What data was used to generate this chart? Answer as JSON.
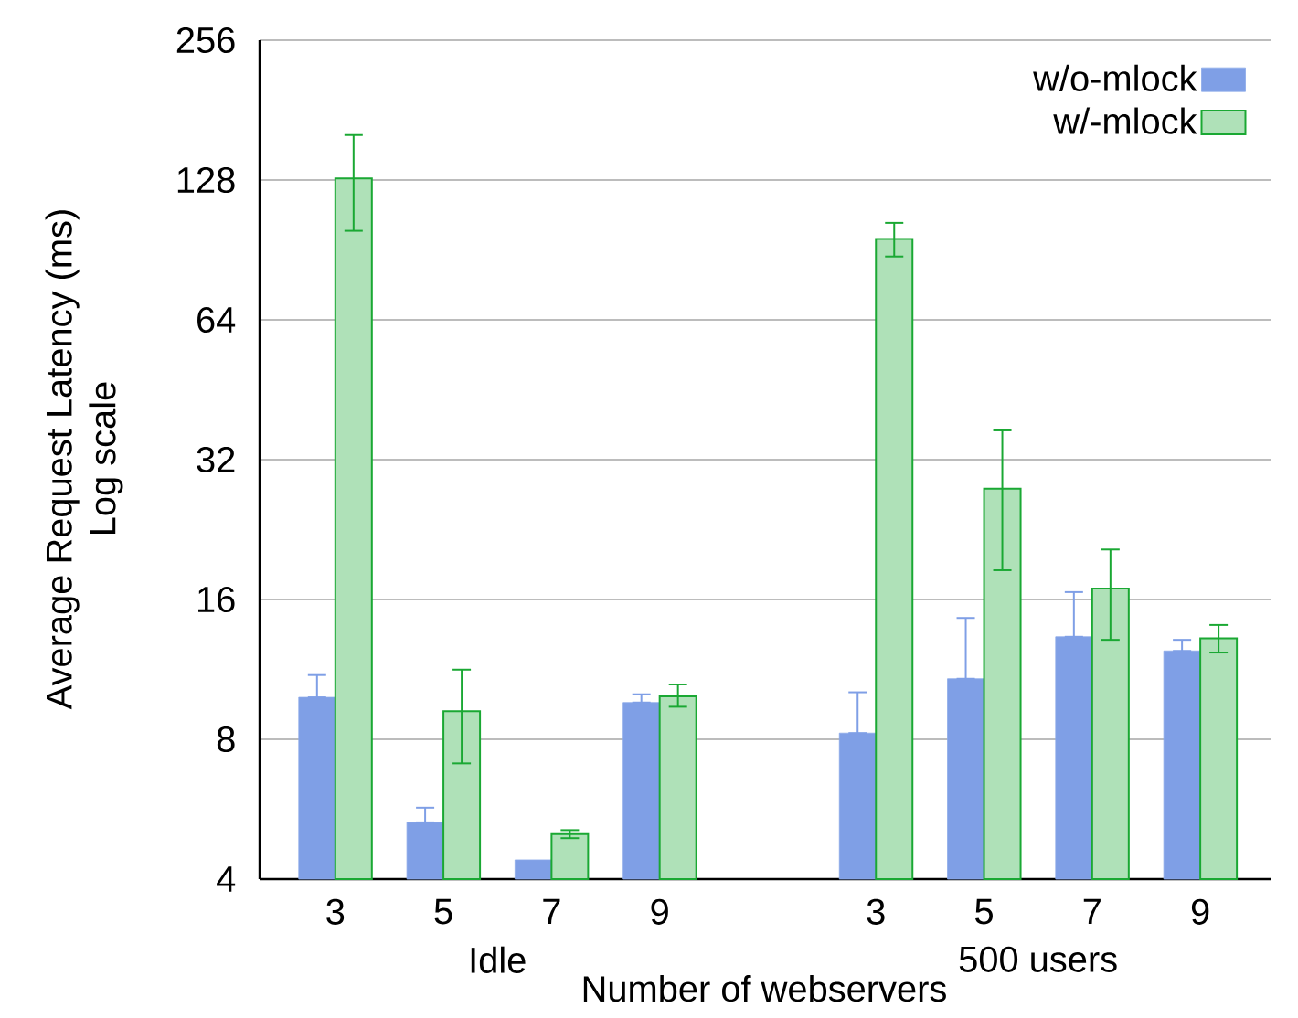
{
  "chart_data": {
    "type": "bar",
    "xlabel": "Number of webservers",
    "ylabel": "Average Request Latency (ms)",
    "annotations": [
      "Idle",
      "500 users",
      "Log scale"
    ],
    "categories": [
      "3",
      "5",
      "7",
      "9",
      null,
      "3",
      "5",
      "7",
      "9"
    ],
    "series": [
      {
        "name": "w/o-mlock",
        "color": "#7f9fe6",
        "values": [
          9.85,
          5.3,
          4.4,
          9.6,
          null,
          8.25,
          10.8,
          13.3,
          12.4
        ],
        "errors": [
          [
            9.85,
            11.0
          ],
          [
            5.3,
            5.7
          ],
          null,
          [
            9.6,
            10.0
          ],
          null,
          [
            8.25,
            10.1
          ],
          [
            10.8,
            14.6
          ],
          [
            13.3,
            16.6
          ],
          [
            12.4,
            13.1
          ]
        ]
      },
      {
        "name": "w/-mlock",
        "color": "#1aa833",
        "values": [
          129,
          9.2,
          5.0,
          9.9,
          null,
          95.6,
          27.7,
          16.9,
          13.2
        ],
        "errors": [
          [
            99.5,
            160
          ],
          [
            7.1,
            11.3
          ],
          [
            4.9,
            5.1
          ],
          [
            9.4,
            10.5
          ],
          null,
          [
            87.6,
            103.5
          ],
          [
            18.5,
            37.0
          ],
          [
            13.1,
            20.5
          ],
          [
            12.3,
            14.1
          ]
        ]
      }
    ],
    "log": "y",
    "ylim": [
      4,
      256
    ],
    "yticks": [
      4,
      8,
      16,
      32,
      64,
      128,
      256
    ],
    "grid": "y",
    "legend": "top right"
  }
}
